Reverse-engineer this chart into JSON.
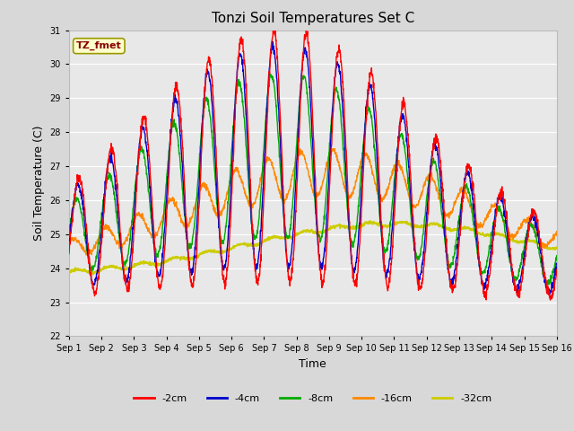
{
  "title": "Tonzi Soil Temperatures Set C",
  "xlabel": "Time",
  "ylabel": "Soil Temperature (C)",
  "ylim": [
    22.0,
    31.0
  ],
  "yticks": [
    22.0,
    23.0,
    24.0,
    25.0,
    26.0,
    27.0,
    28.0,
    29.0,
    30.0,
    31.0
  ],
  "bg_outer": "#d8d8d8",
  "bg_plot": "#e8e8e8",
  "line_colors": {
    "-2cm": "#ff0000",
    "-4cm": "#0000cc",
    "-8cm": "#00aa00",
    "-16cm": "#ff8800",
    "-32cm": "#cccc00"
  },
  "legend_label": "TZ_fmet",
  "legend_box_facecolor": "#ffffcc",
  "legend_box_edgecolor": "#999900",
  "legend_text_color": "#880000",
  "n_days": 15,
  "n_pts": 1800
}
